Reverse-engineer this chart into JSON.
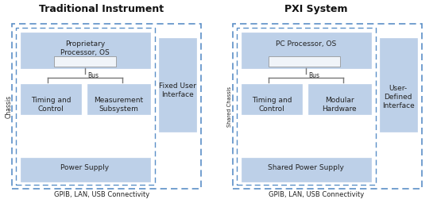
{
  "title_left": "Traditional Instrument",
  "title_right": "PXI System",
  "bg_color": "#ffffff",
  "box_fill_blue": "#bdd0e8",
  "box_fill_inner": "#f0f4f9",
  "dashed_border": "#5b8fc7",
  "solid_border": "#8a8a8a",
  "text_color": "#222222",
  "title_color": "#111111",
  "footer_text": "GPIB, LAN, USB Connectivity",
  "left_side_label": "Chassis",
  "right_side_label": "Shared Chassis",
  "left_fixed_label": "Fixed User\nInterface",
  "right_fixed_label": "User-\nDefined\nInterface"
}
